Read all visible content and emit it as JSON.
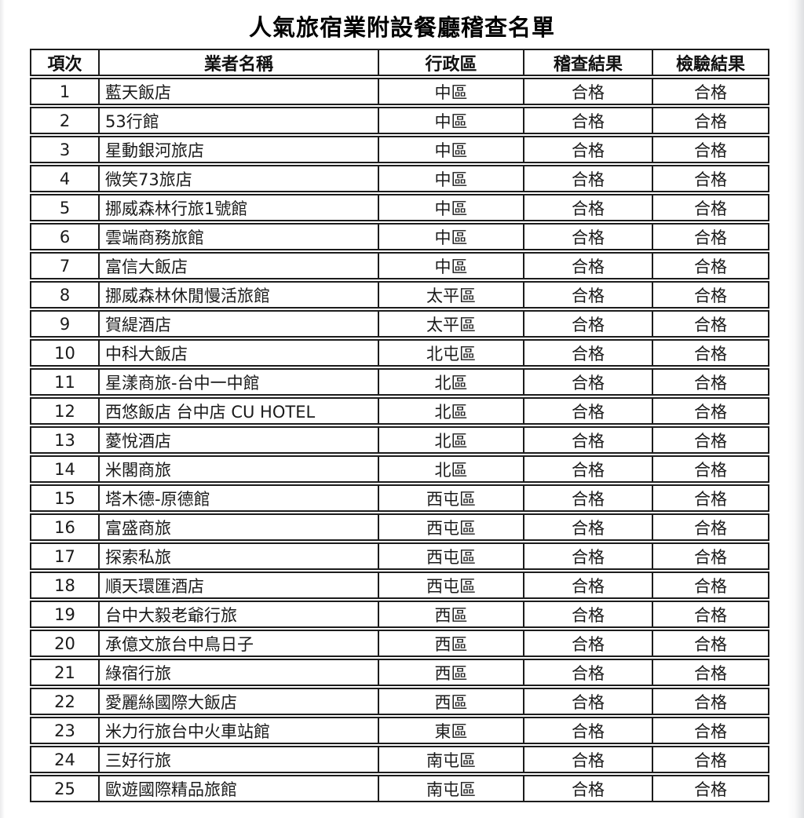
{
  "title": "人氣旅宿業附設餐廳稽查名單",
  "table": {
    "headers": [
      "項次",
      "業者名稱",
      "行政區",
      "稽查結果",
      "檢驗結果"
    ],
    "rows": [
      [
        "1",
        "藍天飯店",
        "中區",
        "合格",
        "合格"
      ],
      [
        "2",
        "53行館",
        "中區",
        "合格",
        "合格"
      ],
      [
        "3",
        "星動銀河旅店",
        "中區",
        "合格",
        "合格"
      ],
      [
        "4",
        "微笑73旅店",
        "中區",
        "合格",
        "合格"
      ],
      [
        "5",
        "挪威森林行旅1號館",
        "中區",
        "合格",
        "合格"
      ],
      [
        "6",
        "雲端商務旅館",
        "中區",
        "合格",
        "合格"
      ],
      [
        "7",
        "富信大飯店",
        "中區",
        "合格",
        "合格"
      ],
      [
        "8",
        "挪威森林休閒慢活旅館",
        "太平區",
        "合格",
        "合格"
      ],
      [
        "9",
        "賀緹酒店",
        "太平區",
        "合格",
        "合格"
      ],
      [
        "10",
        "中科大飯店",
        "北屯區",
        "合格",
        "合格"
      ],
      [
        "11",
        "星漾商旅-台中一中館",
        "北區",
        "合格",
        "合格"
      ],
      [
        "12",
        "西悠飯店 台中店 CU HOTEL",
        "北區",
        "合格",
        "合格"
      ],
      [
        "13",
        "薆悅酒店",
        "北區",
        "合格",
        "合格"
      ],
      [
        "14",
        "米閣商旅",
        "北區",
        "合格",
        "合格"
      ],
      [
        "15",
        "塔木德-原德館",
        "西屯區",
        "合格",
        "合格"
      ],
      [
        "16",
        "富盛商旅",
        "西屯區",
        "合格",
        "合格"
      ],
      [
        "17",
        "探索私旅",
        "西屯區",
        "合格",
        "合格"
      ],
      [
        "18",
        "順天環匯酒店",
        "西屯區",
        "合格",
        "合格"
      ],
      [
        "19",
        "台中大毅老爺行旅",
        "西區",
        "合格",
        "合格"
      ],
      [
        "20",
        "承億文旅台中鳥日子",
        "西區",
        "合格",
        "合格"
      ],
      [
        "21",
        "綠宿行旅",
        "西區",
        "合格",
        "合格"
      ],
      [
        "22",
        "愛麗絲國際大飯店",
        "西區",
        "合格",
        "合格"
      ],
      [
        "23",
        "米力行旅台中火車站館",
        "東區",
        "合格",
        "合格"
      ],
      [
        "24",
        "三好行旅",
        "南屯區",
        "合格",
        "合格"
      ],
      [
        "25",
        "歐遊國際精品旅館",
        "南屯區",
        "合格",
        "合格"
      ]
    ]
  },
  "colors": {
    "border": "#1c1c1c",
    "text": "#1a1a1a",
    "background": "#ffffff"
  }
}
